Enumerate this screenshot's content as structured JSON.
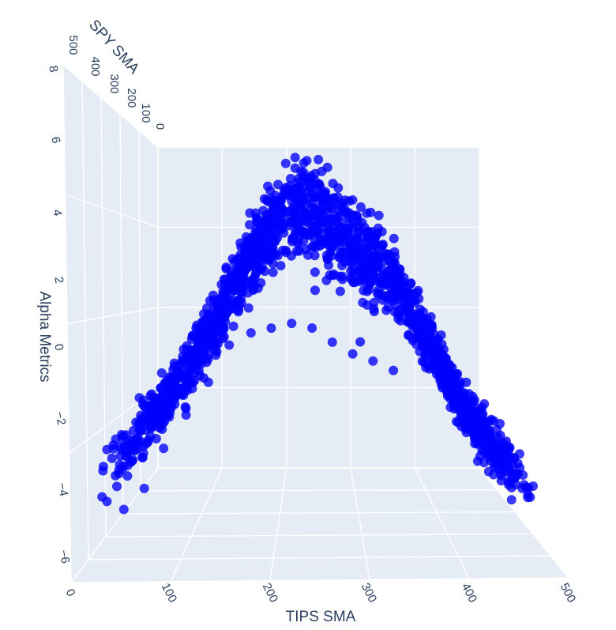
{
  "chart_data": {
    "type": "scatter3d",
    "title": "",
    "xlabel": "TIPS SMA",
    "ylabel": "SPY SMA",
    "zlabel": "Alpha Metrics",
    "xlim": [
      0,
      500
    ],
    "ylim": [
      0,
      500
    ],
    "zlim": [
      -7,
      8
    ],
    "x_ticks": [
      "0",
      "100",
      "200",
      "300",
      "400",
      "500"
    ],
    "y_ticks": [
      "0",
      "100",
      "200",
      "300",
      "400",
      "500"
    ],
    "z_ticks": [
      "−6",
      "−4",
      "−2",
      "0",
      "2",
      "4",
      "6",
      "8"
    ],
    "grid": true,
    "marker_color": "#0000ff",
    "pane_color": "#e5ecf6",
    "sample_points": [
      [
        20,
        100,
        -4.6
      ],
      [
        30,
        150,
        -5.4
      ],
      [
        45,
        200,
        -5.0
      ],
      [
        60,
        250,
        -3.8
      ],
      [
        80,
        300,
        -2.6
      ],
      [
        100,
        150,
        -1.5
      ],
      [
        120,
        200,
        -0.6
      ],
      [
        140,
        250,
        0.5
      ],
      [
        160,
        300,
        1.6
      ],
      [
        180,
        350,
        3.2
      ],
      [
        200,
        400,
        4.8
      ],
      [
        215,
        250,
        5.6
      ],
      [
        230,
        300,
        4.4
      ],
      [
        245,
        200,
        3.2
      ],
      [
        260,
        350,
        2.3
      ],
      [
        280,
        400,
        1.4
      ],
      [
        300,
        250,
        0.6
      ],
      [
        320,
        300,
        1.8
      ],
      [
        340,
        350,
        2.4
      ],
      [
        360,
        400,
        2.2
      ],
      [
        380,
        150,
        1.0
      ],
      [
        400,
        200,
        -0.4
      ],
      [
        420,
        250,
        -1.6
      ],
      [
        440,
        300,
        -2.8
      ],
      [
        460,
        350,
        -3.8
      ],
      [
        480,
        400,
        -4.6
      ]
    ],
    "note_side_band": [
      [
        150,
        450,
        -0.8
      ],
      [
        180,
        450,
        -0.6
      ],
      [
        210,
        450,
        -0.4
      ],
      [
        240,
        450,
        -0.6
      ],
      [
        270,
        450,
        -1.2
      ],
      [
        300,
        450,
        -1.7
      ],
      [
        330,
        450,
        -2.0
      ],
      [
        360,
        450,
        -2.4
      ]
    ]
  }
}
